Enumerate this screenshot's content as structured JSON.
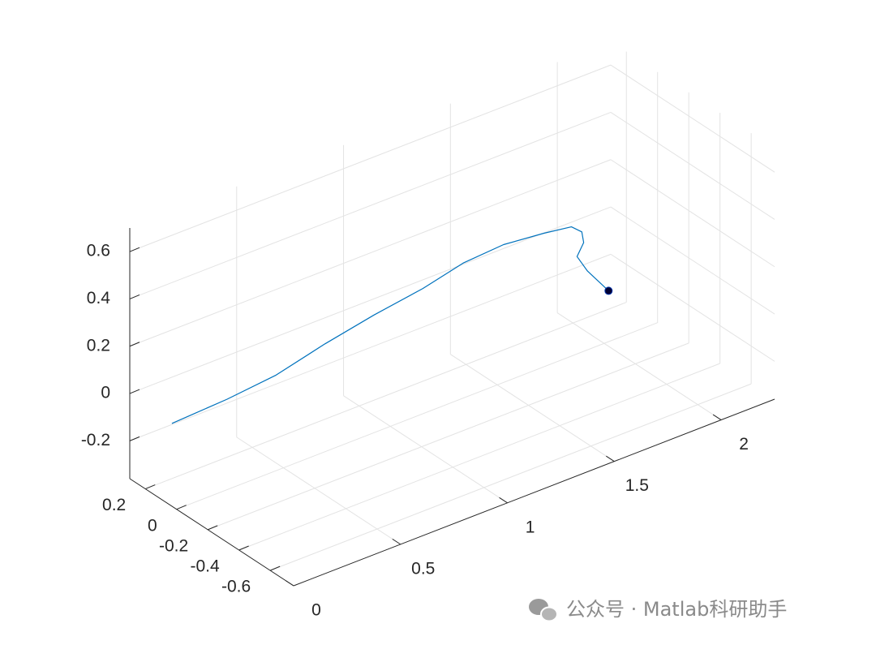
{
  "chart_data": {
    "type": "line3d",
    "xlim": [
      0,
      2.25
    ],
    "ylim": [
      -0.75,
      0.3
    ],
    "zlim": [
      -0.36,
      0.7
    ],
    "xticks": [
      0,
      0.5,
      1,
      1.5,
      2
    ],
    "yticks": [
      -0.6,
      -0.4,
      -0.2,
      0,
      0.2
    ],
    "zticks": [
      -0.2,
      0,
      0.2,
      0.4,
      0.6
    ],
    "grid": true,
    "series": [
      {
        "color": "#0072bd",
        "x": [
          0.0,
          0.25,
          0.47,
          0.69,
          0.91,
          1.13,
          1.31,
          1.49,
          1.67,
          1.79,
          1.83,
          1.83,
          1.79,
          1.83,
          1.92
        ],
        "y": [
          0.03,
          0.018,
          0.006,
          -0.006,
          -0.018,
          -0.03,
          -0.042,
          -0.054,
          -0.066,
          -0.078,
          -0.09,
          -0.102,
          -0.114,
          -0.126,
          -0.138
        ],
        "z": [
          -0.01,
          0.01,
          0.04,
          0.1,
          0.15,
          0.19,
          0.24,
          0.26,
          0.25,
          0.24,
          0.21,
          0.17,
          0.13,
          0.06,
          -0.05
        ]
      }
    ],
    "marker": {
      "color": "#000033",
      "x": 1.92,
      "y": -0.138,
      "z": -0.05
    },
    "watermark": "公众号 · Matlab科研助手"
  }
}
